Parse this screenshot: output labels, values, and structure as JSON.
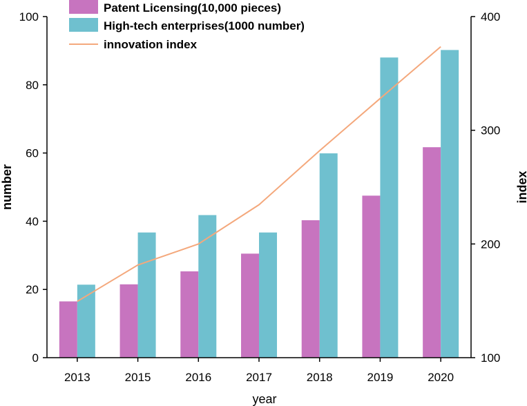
{
  "chart_data": {
    "type": "bar",
    "categories": [
      "2013",
      "2015",
      "2016",
      "2017",
      "2018",
      "2019",
      "2020"
    ],
    "series": [
      {
        "name": "Patent Licensing(10,000 pieces)",
        "kind": "bar",
        "axis": "left",
        "color": "#c774bf",
        "values": [
          16.5,
          21.5,
          25.3,
          30.5,
          40.3,
          47.5,
          61.7
        ]
      },
      {
        "name": "High-tech enterprises(1000 number)",
        "kind": "bar",
        "axis": "left",
        "color": "#6fc0cf",
        "values": [
          21.4,
          36.7,
          41.8,
          36.7,
          59.9,
          88.0,
          90.2
        ]
      },
      {
        "name": "innovation index",
        "kind": "line",
        "axis": "right",
        "color": "#f4a87c",
        "values": [
          149.5,
          181.5,
          200.0,
          234.5,
          282.0,
          328.0,
          373.5
        ]
      }
    ],
    "xlabel": "year",
    "ylabel": "number",
    "y2label": "index",
    "ylim": [
      0,
      100
    ],
    "y2lim": [
      100,
      400
    ],
    "yticks": [
      "0",
      "20",
      "40",
      "60",
      "80",
      "100"
    ],
    "y2ticks": [
      "100",
      "200",
      "300",
      "400"
    ],
    "legend_position": "top-left"
  }
}
